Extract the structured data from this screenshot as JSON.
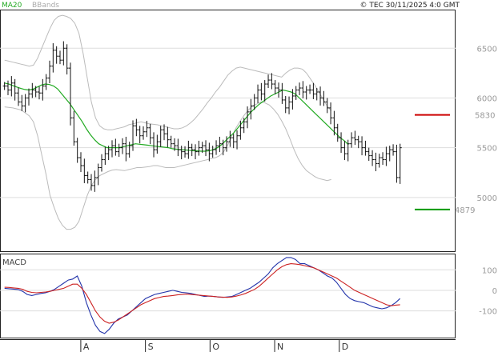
{
  "header": {
    "legend_ma": "MA20",
    "legend_bbands": "BBands",
    "copyright": "© TEC 30/11/2025 4:0 GMT"
  },
  "colors": {
    "ma": "#22aa22",
    "bbands": "#bbbbbb",
    "price": "#111111",
    "resistance": "#cc0000",
    "support": "#009900",
    "macd": "#2233aa",
    "signal": "#cc2222"
  },
  "chart_data": [
    {
      "type": "ohlc",
      "title": "",
      "y_ticks": [
        "6500",
        "6000",
        "5500",
        "5000"
      ],
      "y_tick_values": [
        6500,
        6000,
        5500,
        5000
      ],
      "ylim": [
        4460,
        6880
      ],
      "x_ticks": [
        "A",
        "S",
        "O",
        "N",
        "D"
      ],
      "x_tick_index": [
        27,
        57,
        87,
        117,
        147
      ],
      "x_count": 150,
      "x_range": [
        -1.5,
        149.5
      ],
      "levels": [
        {
          "name": "resistance",
          "label": "5830",
          "value": 5830
        },
        {
          "name": "support",
          "label": "4879",
          "value": 4879
        }
      ],
      "close": [
        6120,
        6080,
        6150,
        6050,
        5960,
        5920,
        6000,
        6040,
        6080,
        6060,
        6050,
        6120,
        6200,
        6320,
        6480,
        6420,
        6380,
        6500,
        6300,
        5800,
        5560,
        5400,
        5320,
        5220,
        5180,
        5120,
        5200,
        5300,
        5380,
        5440,
        5480,
        5520,
        5460,
        5500,
        5540,
        5440,
        5520,
        5720,
        5680,
        5620,
        5660,
        5700,
        5600,
        5480,
        5560,
        5680,
        5640,
        5580,
        5540,
        5520,
        5480,
        5460,
        5440,
        5500,
        5480,
        5460,
        5500,
        5520,
        5480,
        5440,
        5480,
        5520,
        5540,
        5500,
        5560,
        5600,
        5560,
        5620,
        5700,
        5760,
        5860,
        5920,
        6000,
        6080,
        6040,
        6140,
        6180,
        6140,
        6100,
        6080,
        5980,
        5900,
        5960,
        6020,
        6080,
        6100,
        6060,
        6080,
        6080,
        6040,
        6060,
        6000,
        5960,
        5900,
        5800,
        5700,
        5600,
        5500,
        5440,
        5540,
        5600,
        5580,
        5560,
        5500,
        5460,
        5420,
        5380,
        5340,
        5400,
        5380,
        5440,
        5480,
        5460,
        5200,
        5500
      ],
      "ma20": [
        6150,
        6140,
        6125,
        6110,
        6095,
        6085,
        6080,
        6090,
        6110,
        6130,
        6140,
        6135,
        6120,
        6090,
        6040,
        5990,
        5940,
        5880,
        5820,
        5760,
        5690,
        5630,
        5580,
        5540,
        5520,
        5500,
        5500,
        5500,
        5500,
        5510,
        5520,
        5530,
        5540,
        5535,
        5530,
        5525,
        5520,
        5515,
        5510,
        5505,
        5500,
        5490,
        5485,
        5480,
        5478,
        5475,
        5470,
        5468,
        5465,
        5465,
        5470,
        5480,
        5500,
        5530,
        5570,
        5610,
        5650,
        5700,
        5750,
        5800,
        5850,
        5890,
        5930,
        5960,
        5990,
        6020,
        6040,
        6060,
        6080,
        6070,
        6060,
        6040,
        6000,
        5960,
        5920,
        5880,
        5840,
        5800,
        5760,
        5720,
        5680,
        5640,
        5600,
        5570,
        5530
      ],
      "bb_upper": [
        6380,
        6370,
        6360,
        6350,
        6340,
        6330,
        6320,
        6330,
        6400,
        6500,
        6600,
        6700,
        6780,
        6820,
        6830,
        6820,
        6800,
        6750,
        6650,
        6450,
        6200,
        5960,
        5800,
        5720,
        5690,
        5680,
        5680,
        5690,
        5700,
        5710,
        5730,
        5740,
        5750,
        5760,
        5750,
        5740,
        5735,
        5730,
        5720,
        5710,
        5700,
        5690,
        5690,
        5700,
        5720,
        5750,
        5790,
        5840,
        5890,
        5950,
        6000,
        6060,
        6110,
        6170,
        6230,
        6270,
        6300,
        6310,
        6300,
        6290,
        6280,
        6270,
        6260,
        6250,
        6240,
        6230,
        6220,
        6210,
        6250,
        6280,
        6300,
        6300,
        6290,
        6250,
        6190,
        6130,
        6060,
        5990,
        5920,
        5870
      ],
      "bb_lower": [
        5910,
        5905,
        5900,
        5890,
        5880,
        5850,
        5820,
        5760,
        5620,
        5430,
        5240,
        5020,
        4900,
        4790,
        4720,
        4680,
        4680,
        4700,
        4760,
        4890,
        5020,
        5120,
        5180,
        5220,
        5240,
        5260,
        5275,
        5280,
        5275,
        5270,
        5280,
        5290,
        5300,
        5300,
        5305,
        5310,
        5320,
        5320,
        5310,
        5300,
        5300,
        5300,
        5310,
        5320,
        5330,
        5340,
        5350,
        5360,
        5370,
        5380,
        5390,
        5400,
        5420,
        5460,
        5530,
        5620,
        5700,
        5770,
        5830,
        5880,
        5920,
        5940,
        5960,
        5950,
        5930,
        5890,
        5840,
        5770,
        5690,
        5590,
        5480,
        5390,
        5320,
        5270,
        5240,
        5210,
        5190,
        5180,
        5170,
        5180
      ]
    },
    {
      "type": "line",
      "title": "MACD",
      "y_ticks": [
        "100",
        "0",
        "-100"
      ],
      "y_tick_values": [
        100,
        0,
        -100
      ],
      "ylim": [
        -230,
        175
      ],
      "series": [
        {
          "name": "MACD",
          "values": [
            10,
            8,
            6,
            4,
            -5,
            -20,
            -25,
            -20,
            -15,
            -12,
            -5,
            5,
            20,
            35,
            50,
            55,
            70,
            20,
            -60,
            -120,
            -170,
            -200,
            -210,
            -190,
            -160,
            -140,
            -130,
            -120,
            -100,
            -80,
            -60,
            -40,
            -30,
            -20,
            -15,
            -10,
            -5,
            0,
            -5,
            -10,
            -12,
            -15,
            -20,
            -25,
            -30,
            -28,
            -30,
            -32,
            -34,
            -32,
            -30,
            -20,
            -10,
            0,
            10,
            25,
            40,
            60,
            80,
            110,
            130,
            145,
            160,
            160,
            150,
            130,
            130,
            120,
            110,
            100,
            85,
            70,
            60,
            40,
            10,
            -20,
            -40,
            -50,
            -55,
            -60,
            -70,
            -80,
            -85,
            -90,
            -85,
            -75,
            -60,
            -40
          ]
        },
        {
          "name": "Signal",
          "values": [
            15,
            14,
            12,
            10,
            5,
            -5,
            -10,
            -12,
            -10,
            -8,
            -5,
            0,
            5,
            10,
            20,
            30,
            30,
            10,
            -20,
            -60,
            -100,
            -130,
            -150,
            -160,
            -155,
            -145,
            -130,
            -115,
            -100,
            -85,
            -70,
            -60,
            -50,
            -40,
            -35,
            -30,
            -28,
            -25,
            -22,
            -20,
            -18,
            -20,
            -22,
            -24,
            -26,
            -28,
            -30,
            -32,
            -33,
            -34,
            -32,
            -28,
            -22,
            -15,
            -5,
            5,
            20,
            40,
            60,
            80,
            100,
            115,
            125,
            130,
            128,
            125,
            120,
            115,
            110,
            100,
            90,
            80,
            70,
            60,
            45,
            30,
            15,
            0,
            -10,
            -20,
            -30,
            -40,
            -50,
            -60,
            -70,
            -75,
            -72,
            -70
          ]
        }
      ]
    }
  ]
}
